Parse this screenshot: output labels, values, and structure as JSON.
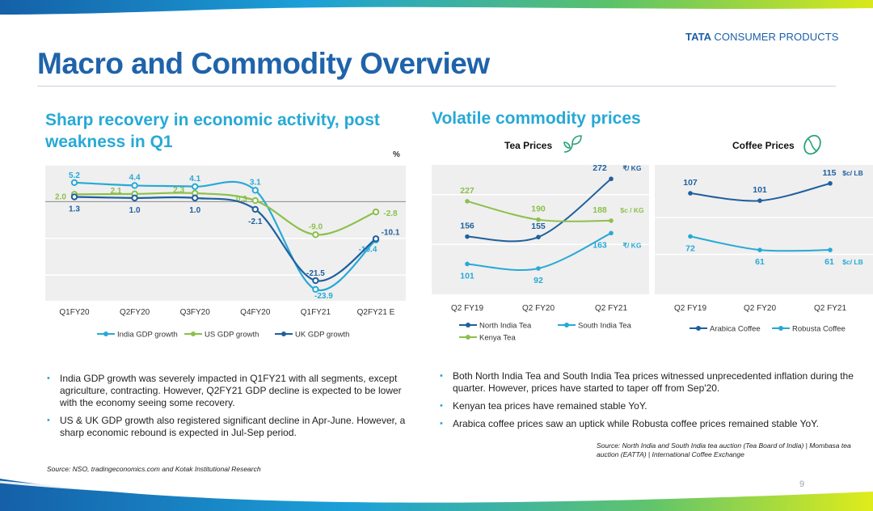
{
  "brand": {
    "bold": "TATA",
    "rest": "CONSUMER PRODUCTS"
  },
  "title": "Macro and Commodity Overview",
  "left": {
    "subtitle": "Sharp recovery in economic activity, post weakness in Q1",
    "unit": "%",
    "bullets": [
      "India GDP growth was severely impacted in Q1FY21 with all segments, except agriculture, contracting. However, Q2FY21 GDP decline is expected to be lower with the economy seeing some recovery.",
      "US & UK GDP growth also registered significant decline in Apr-June. However, a sharp economic rebound is expected in Jul-Sep period."
    ],
    "source": "Source: NSO, tradingeconomics.com and Kotak Institutional Research"
  },
  "right": {
    "subtitle": "Volatile commodity prices",
    "tea_title": "Tea Prices",
    "coffee_title": "Coffee Prices",
    "bullets": [
      "Both North India Tea and South India Tea prices witnessed unprecedented inflation during the quarter. However, prices have started to taper off from Sep'20.",
      "Kenyan tea prices have remained stable YoY.",
      "Arabica coffee prices saw an uptick while Robusta coffee prices remained stable YoY."
    ],
    "source": "Source: North India and South India tea auction  (Tea Board of India) | Mombasa tea auction (EATTA) | International Coffee  Exchange"
  },
  "page_number": "9",
  "colors": {
    "title_blue": "#1f63aa",
    "subtitle_blue": "#27a9d6",
    "india": "#27a9d6",
    "us": "#8cc04b",
    "uk": "#1f5f9e",
    "plot_bg": "#efefef"
  },
  "icons": {
    "tea": "tea-leaf-icon",
    "coffee": "coffee-bean-icon"
  },
  "chart_data": [
    {
      "type": "line",
      "x": [
        "Q1FY20",
        "Q2FY20",
        "Q3FY20",
        "Q4FY20",
        "Q1FY21",
        "Q2FY21 E"
      ],
      "ylabel": "%",
      "series": [
        {
          "name": "India GDP growth",
          "values": [
            5.2,
            4.4,
            4.1,
            3.1,
            -23.9,
            -10.4
          ],
          "labels": [
            "5.2",
            "4.4",
            "4.1",
            "3.1",
            "-23.9",
            "-10.4"
          ]
        },
        {
          "name": "US GDP growth",
          "values": [
            2.0,
            2.1,
            2.3,
            0.3,
            -9.0,
            -2.8
          ],
          "labels": [
            "2.0",
            "2.1",
            "2.3",
            "0.3",
            "-9.0",
            "-2.8"
          ]
        },
        {
          "name": "UK GDP growth",
          "values": [
            1.3,
            1.0,
            1.0,
            -2.1,
            -21.5,
            -10.1
          ],
          "labels": [
            "1.3",
            "1.0",
            "1.0",
            "-2.1",
            "-21.5",
            "-10.1"
          ]
        }
      ],
      "ylim": [
        -27,
        10
      ],
      "grid": true,
      "legend": "bottom"
    },
    {
      "type": "line",
      "title": "Tea Prices",
      "x": [
        "Q2 FY19",
        "Q2 FY20",
        "Q2 FY21"
      ],
      "series": [
        {
          "name": "North India Tea",
          "values": [
            156,
            155,
            272
          ],
          "unit": "₹/KG"
        },
        {
          "name": "South India Tea",
          "values": [
            101,
            92,
            163
          ],
          "unit": "₹/KG"
        },
        {
          "name": "Kenya Tea",
          "values": [
            227,
            190,
            188
          ],
          "unit": "$c/KG"
        }
      ],
      "unit_labels": {
        "Kenya Tea": "$c / KG",
        "North India Tea": "₹/ KG",
        "South India Tea": "₹/ KG"
      },
      "grid": true,
      "legend": "bottom"
    },
    {
      "type": "line",
      "title": "Coffee Prices",
      "x": [
        "Q2 FY19",
        "Q2 FY20",
        "Q2 FY21"
      ],
      "series": [
        {
          "name": "Arabica Coffee",
          "values": [
            107,
            101,
            115
          ],
          "unit": "$c/LB"
        },
        {
          "name": "Robusta Coffee",
          "values": [
            72,
            61,
            61
          ],
          "unit": "$c/LB"
        }
      ],
      "unit_labels": {
        "Arabica Coffee": "$c/ LB",
        "Robusta Coffee": "$c/ LB"
      },
      "grid": true,
      "legend": "bottom"
    }
  ]
}
